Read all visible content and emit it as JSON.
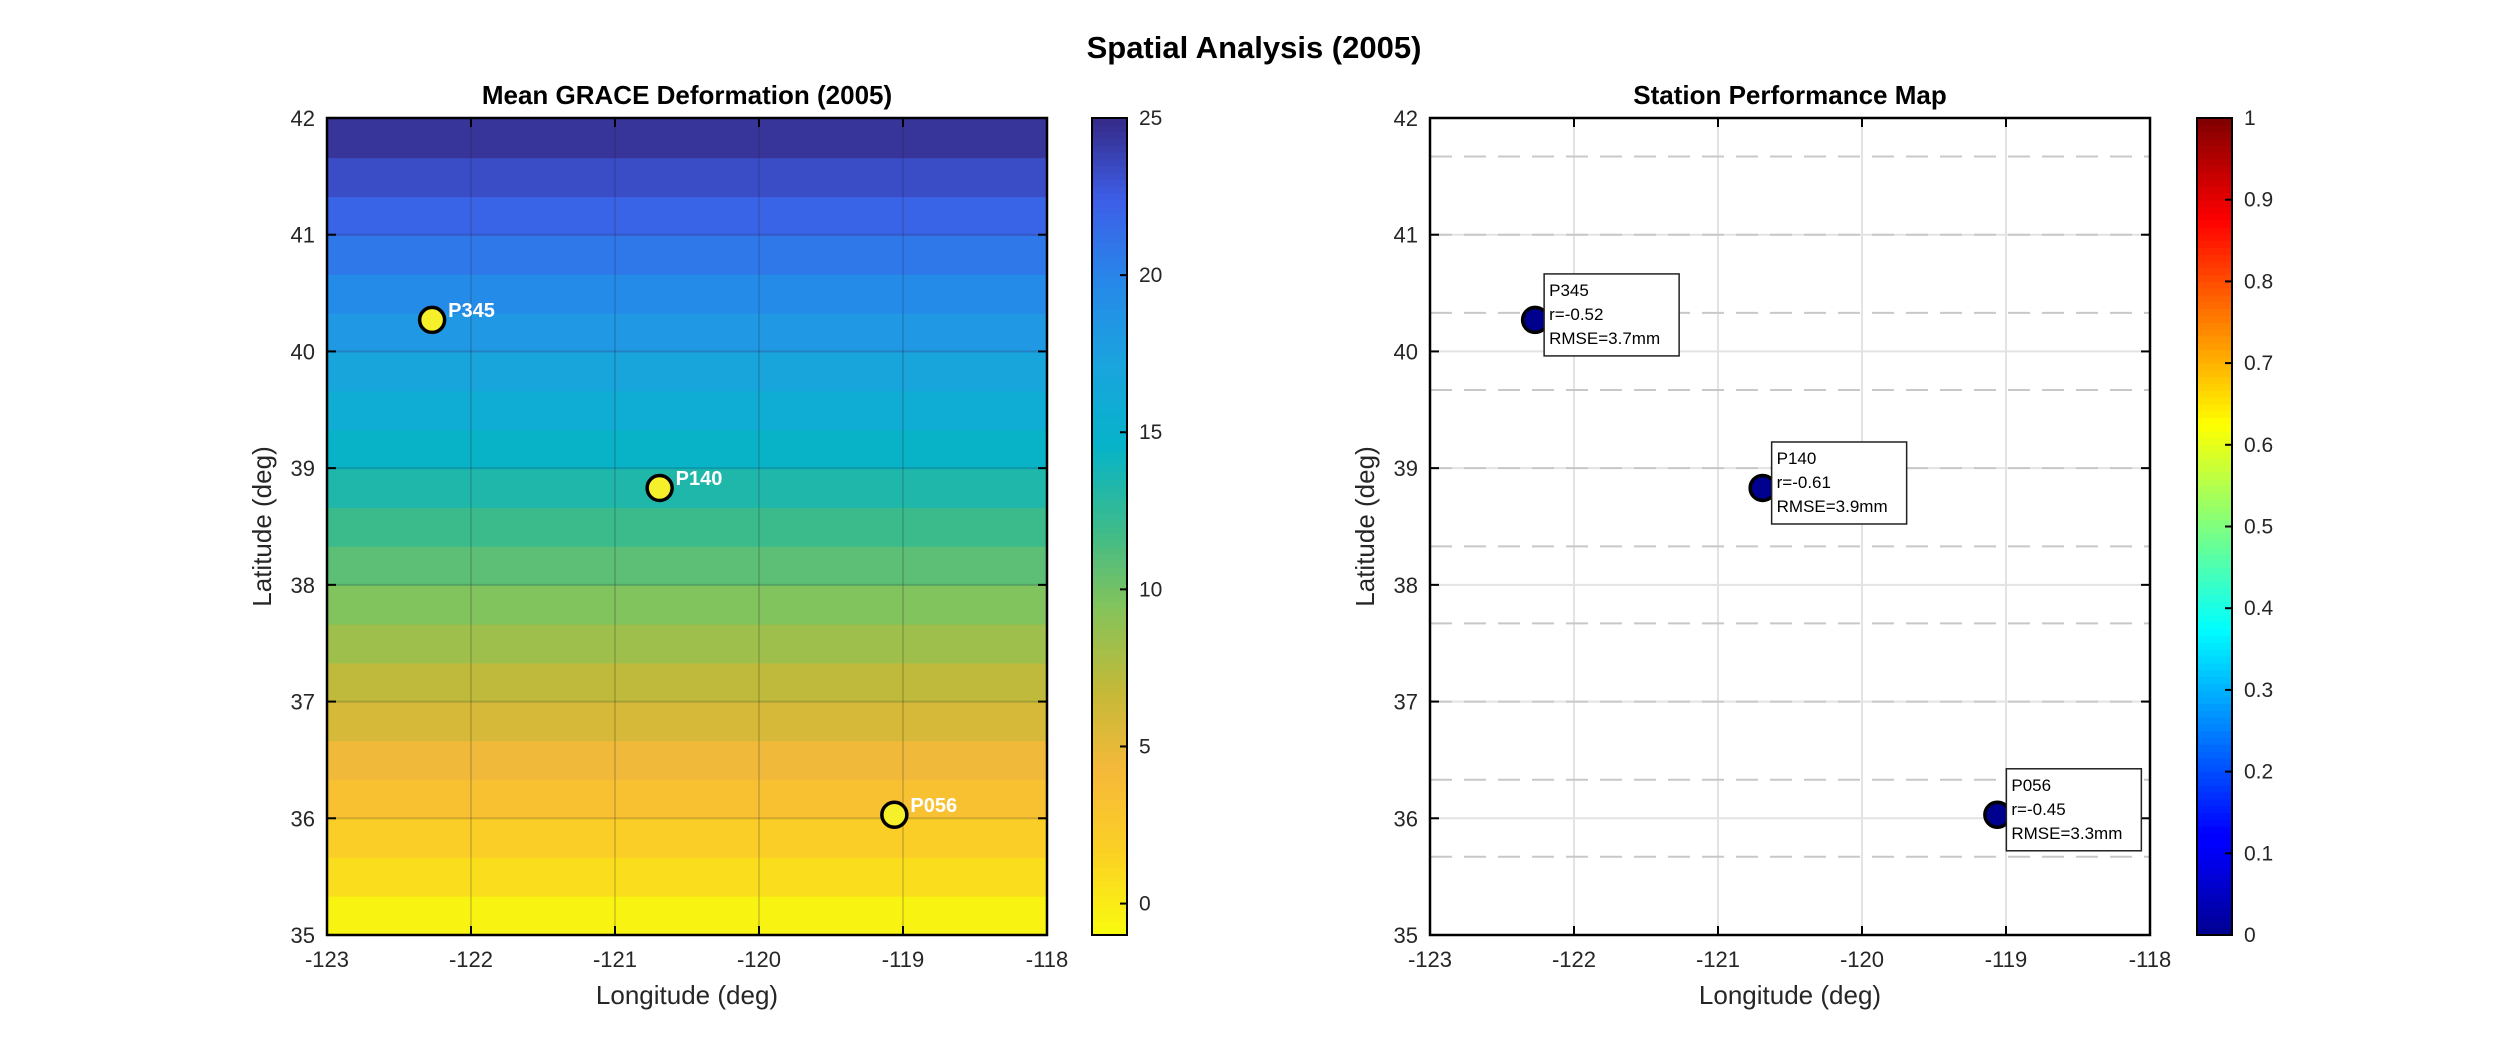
{
  "figure": {
    "title": "Spatial Analysis (2005)"
  },
  "chart_data": [
    {
      "type": "heatmap",
      "title": "Mean GRACE Deformation (2005)",
      "xlabel": "Longitude (deg)",
      "ylabel": "Latitude (deg)",
      "xlim": [
        -123,
        -118
      ],
      "ylim": [
        35,
        42
      ],
      "xticks": [
        "-123",
        "-122",
        "-121",
        "-120",
        "-119",
        "-118"
      ],
      "yticks": [
        "35",
        "36",
        "37",
        "38",
        "39",
        "40",
        "41",
        "42"
      ],
      "grid": true,
      "colormap": "parula (reversed)",
      "colorbar": {
        "range": [
          -1,
          25
        ],
        "ticks": [
          "0",
          "5",
          "10",
          "15",
          "20",
          "25"
        ]
      },
      "field": {
        "description_axis": "latitude",
        "lat_start": 35,
        "lat_step": 0.333,
        "values": [
          -0.5,
          0.8,
          2.0,
          3.3,
          4.5,
          5.8,
          7.0,
          8.3,
          9.5,
          10.8,
          12.0,
          13.3,
          14.5,
          15.8,
          17.0,
          18.3,
          19.5,
          20.8,
          22.0,
          23.3,
          24.5
        ]
      },
      "stations": [
        {
          "name": "P345",
          "lon": -122.27,
          "lat": 40.27
        },
        {
          "name": "P140",
          "lon": -120.69,
          "lat": 38.83
        },
        {
          "name": "P056",
          "lon": -119.06,
          "lat": 36.03
        }
      ],
      "marker_color": "#f5f02a"
    },
    {
      "type": "scatter",
      "title": "Station Performance Map",
      "xlabel": "Longitude (deg)",
      "ylabel": "Latitude (deg)",
      "xlim": [
        -123,
        -118
      ],
      "ylim": [
        35,
        42
      ],
      "xticks": [
        "-123",
        "-122",
        "-121",
        "-120",
        "-119",
        "-118"
      ],
      "yticks": [
        "35",
        "36",
        "37",
        "38",
        "39",
        "40",
        "41",
        "42"
      ],
      "grid": true,
      "colormap": "jet",
      "colorbar": {
        "range": [
          0,
          1
        ],
        "ticks": [
          "0",
          "0.1",
          "0.2",
          "0.3",
          "0.4",
          "0.5",
          "0.6",
          "0.7",
          "0.8",
          "0.9",
          "1"
        ]
      },
      "dashed_lat_lines": [
        35.67,
        36.33,
        37.0,
        37.67,
        38.33,
        39.0,
        39.67,
        40.33,
        41.0,
        41.67
      ],
      "stations": [
        {
          "name": "P345",
          "lon": -122.27,
          "lat": 40.27,
          "r": "r=-0.52",
          "rmse": "RMSE=3.7mm",
          "color_value": 0.0
        },
        {
          "name": "P140",
          "lon": -120.69,
          "lat": 38.83,
          "r": "r=-0.61",
          "rmse": "RMSE=3.9mm",
          "color_value": 0.0
        },
        {
          "name": "P056",
          "lon": -119.06,
          "lat": 36.03,
          "r": "r=-0.45",
          "rmse": "RMSE=3.3mm",
          "color_value": 0.0
        }
      ]
    }
  ]
}
